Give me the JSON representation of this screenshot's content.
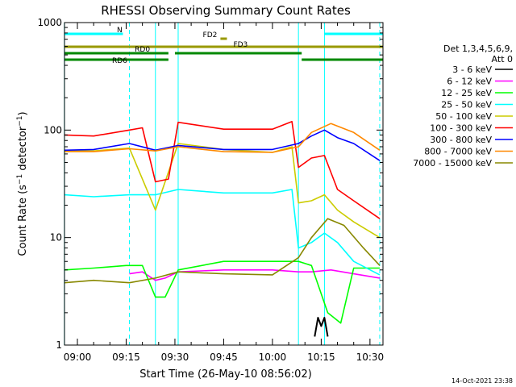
{
  "chart_data": {
    "type": "line",
    "title": "RHESSI Observing Summary Count Rates",
    "xlabel": "Start Time (26-May-10 08:56:02)",
    "ylabel": "Count Rate (s⁻¹ detector⁻¹)",
    "ylabel_parts": [
      "Count Rate (s",
      "−1",
      " detector",
      "−1",
      ")"
    ],
    "yscale": "log",
    "ylim": [
      1,
      1000
    ],
    "xlim": [
      "08:56:02",
      "10:34:00"
    ],
    "x_ticks": [
      "09:00",
      "09:15",
      "09:30",
      "09:45",
      "10:00",
      "10:15",
      "10:30"
    ],
    "y_ticks": [
      {
        "value": 1,
        "label": "1"
      },
      {
        "value": 10,
        "label": "10"
      },
      {
        "value": 100,
        "label": "100"
      },
      {
        "value": 1000,
        "label": "1000"
      }
    ],
    "footer": "14-Oct-2021 23:38",
    "legend_header": [
      "Det 1,3,4,5,6,9,",
      "Att 0"
    ],
    "legend_placement": "right",
    "state_bars": [
      {
        "label": "N",
        "color": "#00ffff",
        "segments": [
          [
            "08:56",
            "09:14"
          ],
          [
            "10:16",
            "10:34"
          ]
        ]
      },
      {
        "label": "FD2",
        "color": "#999900",
        "segments": [
          [
            "09:44",
            "09:46"
          ]
        ]
      },
      {
        "label": "FD3",
        "color": "#999900",
        "segments": [
          [
            "08:56",
            "10:34"
          ]
        ]
      },
      {
        "label": "RD0",
        "color": "#008800",
        "segments": [
          [
            "08:56",
            "09:28"
          ],
          [
            "09:30",
            "10:09"
          ]
        ]
      },
      {
        "label": "RD6",
        "color": "#008800",
        "segments": [
          [
            "08:56",
            "09:28"
          ],
          [
            "10:09",
            "10:34"
          ]
        ]
      }
    ],
    "vlines": [
      {
        "time": "08:56",
        "color": "#00ffff",
        "style": "solid"
      },
      {
        "time": "09:16",
        "color": "#00ffff",
        "style": "dashed"
      },
      {
        "time": "09:24",
        "color": "#00ffff",
        "style": "solid"
      },
      {
        "time": "09:31",
        "color": "#00ffff",
        "style": "solid"
      },
      {
        "time": "10:08",
        "color": "#00ffff",
        "style": "solid"
      },
      {
        "time": "10:16",
        "color": "#00ffff",
        "style": "solid"
      },
      {
        "time": "10:33",
        "color": "#00ffff",
        "style": "dashed"
      }
    ],
    "series": [
      {
        "name": "3 - 6 keV",
        "color": "#000000",
        "points": [
          [
            "10:13",
            1.2
          ],
          [
            "10:14",
            1.8
          ],
          [
            "10:15",
            1.5
          ],
          [
            "10:16",
            1.8
          ],
          [
            "10:17",
            1.2
          ]
        ]
      },
      {
        "name": "6 - 12 keV",
        "color": "#ff00ff",
        "points": [
          [
            "09:16",
            4.6
          ],
          [
            "09:20",
            4.8
          ],
          [
            "09:24",
            4.0
          ],
          [
            "09:27",
            4.2
          ],
          [
            "09:31",
            4.8
          ],
          [
            "09:45",
            5.0
          ],
          [
            "10:00",
            5.0
          ],
          [
            "10:08",
            4.8
          ],
          [
            "10:12",
            4.8
          ],
          [
            "10:18",
            5.0
          ],
          [
            "10:25",
            4.6
          ],
          [
            "10:33",
            4.2
          ]
        ]
      },
      {
        "name": "12 - 25 keV",
        "color": "#00ff00",
        "points": [
          [
            "08:56",
            5.0
          ],
          [
            "09:05",
            5.2
          ],
          [
            "09:15",
            5.5
          ],
          [
            "09:20",
            5.5
          ],
          [
            "09:24",
            2.8
          ],
          [
            "09:27",
            2.8
          ],
          [
            "09:31",
            5.0
          ],
          [
            "09:45",
            6.0
          ],
          [
            "10:00",
            6.0
          ],
          [
            "10:08",
            6.0
          ],
          [
            "10:12",
            5.5
          ],
          [
            "10:17",
            2.0
          ],
          [
            "10:21",
            1.6
          ],
          [
            "10:25",
            5.2
          ],
          [
            "10:33",
            5.2
          ]
        ]
      },
      {
        "name": "25 - 50 keV",
        "color": "#00ffff",
        "points": [
          [
            "08:56",
            25
          ],
          [
            "09:05",
            24
          ],
          [
            "09:16",
            25
          ],
          [
            "09:24",
            25
          ],
          [
            "09:31",
            28
          ],
          [
            "09:45",
            26
          ],
          [
            "10:00",
            26
          ],
          [
            "10:06",
            28
          ],
          [
            "10:08",
            8
          ],
          [
            "10:12",
            9
          ],
          [
            "10:16",
            11
          ],
          [
            "10:20",
            9
          ],
          [
            "10:25",
            6
          ],
          [
            "10:33",
            4.5
          ]
        ]
      },
      {
        "name": "50 - 100 keV",
        "color": "#cccc00",
        "points": [
          [
            "08:56",
            64
          ],
          [
            "09:05",
            64
          ],
          [
            "09:16",
            68
          ],
          [
            "09:24",
            18
          ],
          [
            "09:31",
            75
          ],
          [
            "09:45",
            66
          ],
          [
            "10:00",
            62
          ],
          [
            "10:06",
            70
          ],
          [
            "10:08",
            21
          ],
          [
            "10:12",
            22
          ],
          [
            "10:16",
            25
          ],
          [
            "10:20",
            18
          ],
          [
            "10:25",
            14
          ],
          [
            "10:33",
            10
          ]
        ]
      },
      {
        "name": "100 - 300 keV",
        "color": "#ff0000",
        "points": [
          [
            "08:56",
            90
          ],
          [
            "09:05",
            88
          ],
          [
            "09:16",
            100
          ],
          [
            "09:20",
            105
          ],
          [
            "09:24",
            33
          ],
          [
            "09:28",
            35
          ],
          [
            "09:31",
            118
          ],
          [
            "09:45",
            102
          ],
          [
            "10:00",
            102
          ],
          [
            "10:06",
            120
          ],
          [
            "10:08",
            45
          ],
          [
            "10:12",
            55
          ],
          [
            "10:16",
            58
          ],
          [
            "10:20",
            28
          ],
          [
            "10:25",
            22
          ],
          [
            "10:33",
            15
          ]
        ]
      },
      {
        "name": "300 - 800 keV",
        "color": "#0000ff",
        "points": [
          [
            "08:56",
            65
          ],
          [
            "09:05",
            66
          ],
          [
            "09:16",
            75
          ],
          [
            "09:24",
            65
          ],
          [
            "09:31",
            72
          ],
          [
            "09:45",
            66
          ],
          [
            "10:00",
            66
          ],
          [
            "10:08",
            75
          ],
          [
            "10:12",
            88
          ],
          [
            "10:16",
            100
          ],
          [
            "10:20",
            85
          ],
          [
            "10:25",
            75
          ],
          [
            "10:33",
            52
          ]
        ]
      },
      {
        "name": "800 - 7000 keV",
        "color": "#ff8800",
        "points": [
          [
            "08:56",
            63
          ],
          [
            "09:05",
            63
          ],
          [
            "09:16",
            67
          ],
          [
            "09:24",
            64
          ],
          [
            "09:31",
            70
          ],
          [
            "09:45",
            63
          ],
          [
            "10:00",
            62
          ],
          [
            "10:08",
            70
          ],
          [
            "10:12",
            95
          ],
          [
            "10:18",
            115
          ],
          [
            "10:25",
            95
          ],
          [
            "10:33",
            65
          ]
        ]
      },
      {
        "name": "7000 - 15000 keV",
        "color": "#888800",
        "points": [
          [
            "08:56",
            3.8
          ],
          [
            "09:05",
            4.0
          ],
          [
            "09:16",
            3.8
          ],
          [
            "09:24",
            4.2
          ],
          [
            "09:31",
            4.8
          ],
          [
            "09:45",
            4.6
          ],
          [
            "10:00",
            4.5
          ],
          [
            "10:08",
            6.5
          ],
          [
            "10:12",
            10
          ],
          [
            "10:17",
            15
          ],
          [
            "10:22",
            13
          ],
          [
            "10:28",
            8
          ],
          [
            "10:33",
            5.5
          ]
        ]
      }
    ]
  }
}
